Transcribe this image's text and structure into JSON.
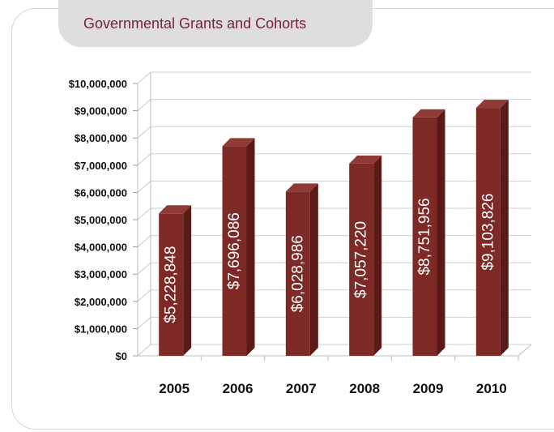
{
  "header": {
    "title": "Governmental Grants and Cohorts"
  },
  "chart_data": {
    "type": "bar",
    "title": "Governmental Grants and Cohorts",
    "categories": [
      "2005",
      "2006",
      "2007",
      "2008",
      "2009",
      "2010"
    ],
    "values": [
      5228848,
      7696086,
      6028986,
      7057220,
      8751956,
      9103826
    ],
    "value_labels": [
      "$5,228,848",
      "$7,696,086",
      "$6,028,986",
      "$7,057,220",
      "$8,751,956",
      "$9,103,826"
    ],
    "ylim": [
      0,
      10000000
    ],
    "yticks": [
      0,
      1000000,
      2000000,
      3000000,
      4000000,
      5000000,
      6000000,
      7000000,
      8000000,
      9000000,
      10000000
    ],
    "ytick_labels": [
      "$0",
      "$1,000,000",
      "$2,000,000",
      "$3,000,000",
      "$4,000,000",
      "$5,000,000",
      "$6,000,000",
      "$7,000,000",
      "$8,000,000",
      "$9,000,000",
      "$10,000,000"
    ],
    "xlabel": "",
    "ylabel": "",
    "grid": true,
    "legend": "none",
    "bar_color": "#7d2a26",
    "style": "3d-column"
  }
}
